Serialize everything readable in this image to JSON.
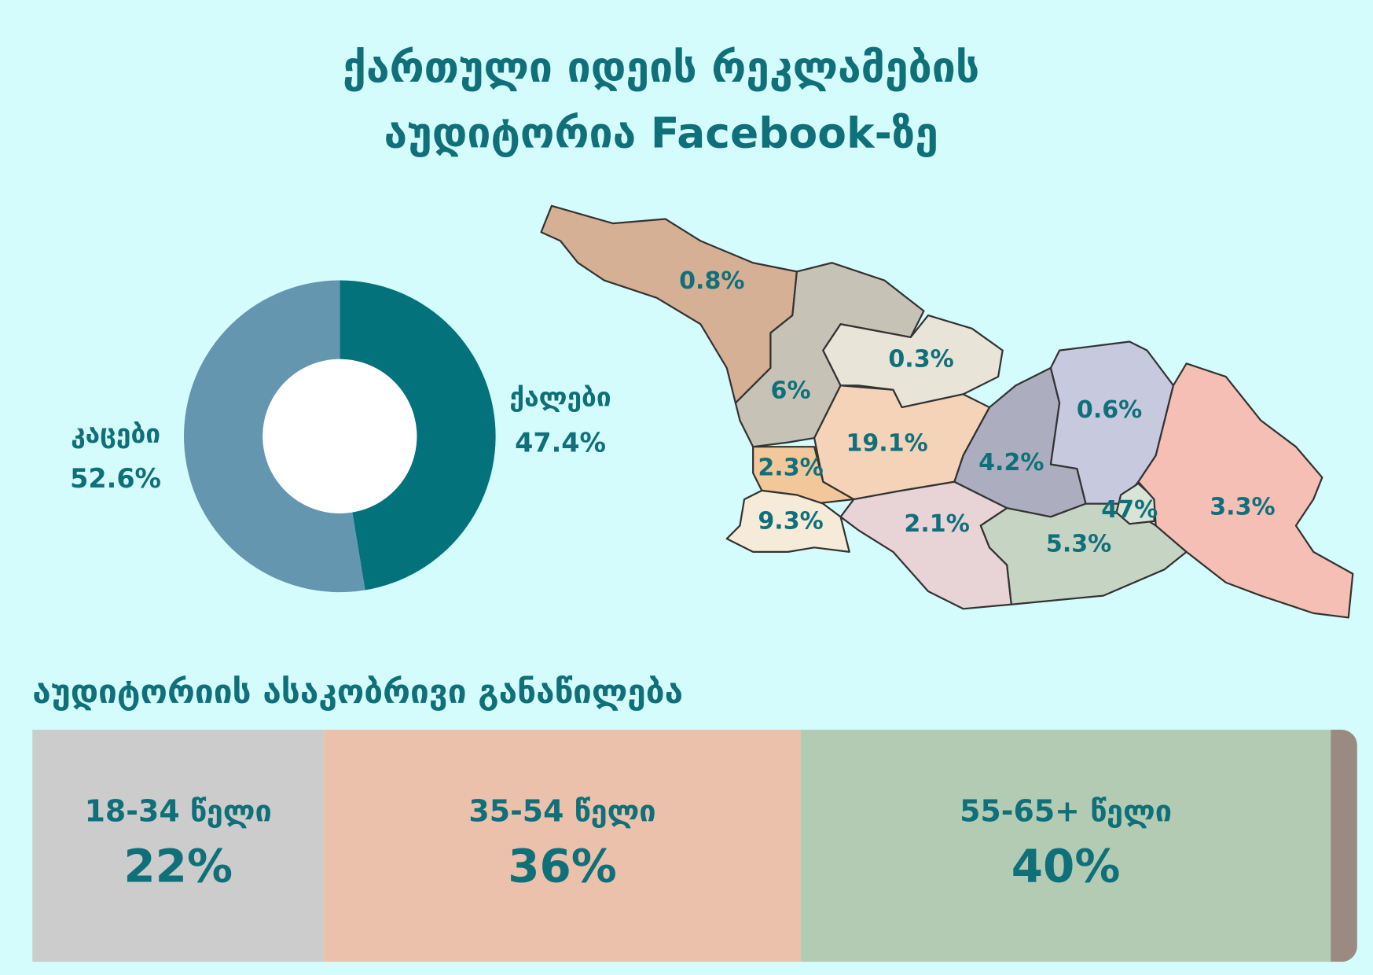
{
  "title": [
    "ქართული იდეის რეკლამების",
    "აუდიტორია Facebook-ზე"
  ],
  "chart_data": [
    {
      "type": "pie",
      "donut": true,
      "categories": [
        "ქალები",
        "კაცები"
      ],
      "values": [
        47.4,
        52.6
      ],
      "value_labels": [
        "47.4%",
        "52.6%"
      ],
      "colors": [
        "#03727b",
        "#6496b0"
      ]
    },
    {
      "type": "stacked-bar",
      "title": "აუდიტორიის ასაკობრივი განაწილება",
      "categories": [
        "18-34 წელი",
        "35-54 წელი",
        "55-65+ წელი",
        null
      ],
      "values": [
        22,
        36,
        40,
        2
      ],
      "value_labels": [
        "22%",
        "36%",
        "40%",
        null
      ],
      "colors": [
        "#cccccc",
        "#ecc1ab",
        "#b4cbb3",
        "#9b8a82"
      ]
    }
  ],
  "map": {
    "labels": [
      "0.8%",
      "6%",
      "0.3%",
      "19.1%",
      "2.3%",
      "9.3%",
      "2.1%",
      "4.2%",
      "0.6%",
      "47%",
      "5.3%",
      "3.3%"
    ]
  }
}
